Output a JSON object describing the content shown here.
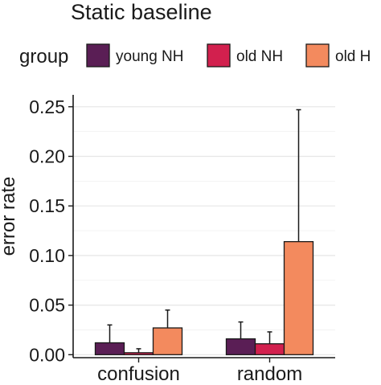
{
  "chart_data": {
    "type": "bar",
    "title": "Static baseline",
    "xlabel": "",
    "ylabel": "error rate",
    "categories": [
      "confusion",
      "random"
    ],
    "ylim": [
      -0.003,
      0.262
    ],
    "yticks": [
      0.0,
      0.05,
      0.1,
      0.15,
      0.2,
      0.25
    ],
    "ytick_labels": [
      "0.00",
      "0.05",
      "0.10",
      "0.15",
      "0.20",
      "0.25"
    ],
    "grid": "horizontal",
    "legend": {
      "title": "group",
      "placement": "top"
    },
    "series": [
      {
        "name": "young NH",
        "color": "#5a1e55",
        "values": [
          0.012,
          0.016
        ],
        "error_upper": [
          0.03,
          0.033
        ]
      },
      {
        "name": "old NH",
        "color": "#d2204e",
        "values": [
          0.002,
          0.011
        ],
        "error_upper": [
          0.006,
          0.023
        ]
      },
      {
        "name": "old H",
        "color": "#f38a5e",
        "values": [
          0.027,
          0.114
        ],
        "error_upper": [
          0.045,
          0.247
        ]
      }
    ]
  }
}
